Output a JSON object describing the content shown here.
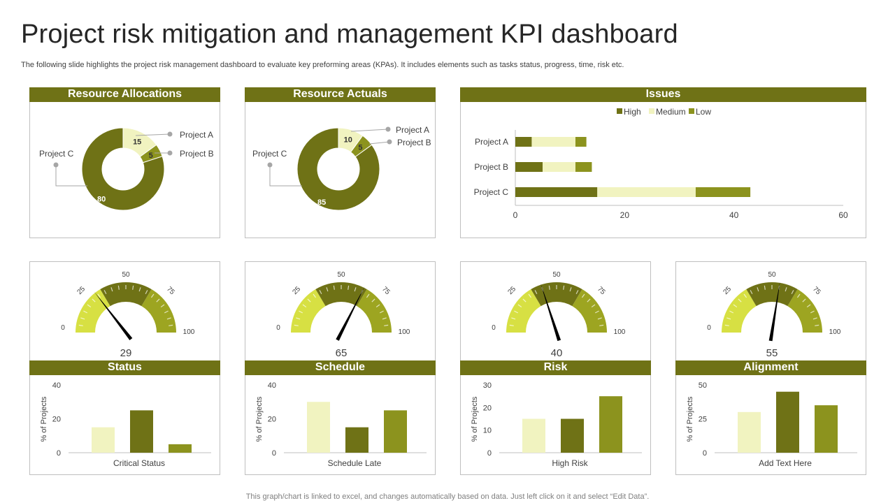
{
  "header": {
    "title": "Project risk mitigation and management KPI dashboard",
    "subtitle": "The following slide highlights the project risk management dashboard to evaluate key preforming areas (KPAs). It includes elements such as tasks status, progress, time, risk etc."
  },
  "footer": "This graph/chart is linked to excel,  and changes automatically based on data. Just left click on it and select “Edit Data”.",
  "colors": {
    "dark": "#6f7216",
    "mid": "#8c931e",
    "light": "#f1f3c0",
    "lime": "#d7e043",
    "olive2": "#9da521"
  },
  "chart_data": [
    {
      "id": "resource-allocations",
      "type": "pie",
      "title": "Resource Allocations",
      "categories": [
        "Project A",
        "Project B",
        "Project C"
      ],
      "values": [
        15,
        5,
        80
      ]
    },
    {
      "id": "resource-actuals",
      "type": "pie",
      "title": "Resource Actuals",
      "categories": [
        "Project A",
        "Project B",
        "Project C"
      ],
      "values": [
        10,
        5,
        85
      ]
    },
    {
      "id": "issues",
      "type": "bar",
      "orientation": "horizontal",
      "stacked": true,
      "title": "Issues",
      "categories": [
        "Project A",
        "Project B",
        "Project C"
      ],
      "series": [
        {
          "name": "High",
          "values": [
            3,
            5,
            15
          ]
        },
        {
          "name": "Medium",
          "values": [
            8,
            6,
            18
          ]
        },
        {
          "name": "Low",
          "values": [
            2,
            3,
            10
          ]
        }
      ],
      "xlim": [
        0,
        60
      ],
      "xticks": [
        "0",
        "20",
        "40",
        "60"
      ],
      "legend": "top"
    },
    {
      "id": "status-gauge",
      "type": "gauge",
      "title": "Status",
      "value": 29,
      "value_label": "29",
      "range": [
        0,
        100
      ],
      "tick_labels": [
        "0",
        "25",
        "50",
        "75",
        "100"
      ]
    },
    {
      "id": "schedule-gauge",
      "type": "gauge",
      "title": "Schedule",
      "value": 65,
      "value_label": "65",
      "range": [
        0,
        100
      ],
      "tick_labels": [
        "0",
        "25",
        "50",
        "75",
        "100"
      ]
    },
    {
      "id": "risk-gauge",
      "type": "gauge",
      "title": "Risk",
      "value": 40,
      "value_label": "40",
      "range": [
        0,
        100
      ],
      "tick_labels": [
        "0",
        "25",
        "50",
        "75",
        "100"
      ]
    },
    {
      "id": "alignment-gauge",
      "type": "gauge",
      "title": "Alignment",
      "value": 55,
      "value_label": "55",
      "range": [
        0,
        100
      ],
      "tick_labels": [
        "0",
        "25",
        "50",
        "75",
        "100"
      ]
    },
    {
      "id": "status-bars",
      "type": "bar",
      "xlabel": "Critical Status",
      "ylabel": "% of Projects",
      "values": [
        15,
        25,
        5
      ],
      "ylim": [
        0,
        40
      ],
      "yticks": [
        "0",
        "20",
        "40"
      ]
    },
    {
      "id": "schedule-bars",
      "type": "bar",
      "xlabel": "Schedule Late",
      "ylabel": "% of Projects",
      "values": [
        30,
        15,
        25
      ],
      "ylim": [
        0,
        40
      ],
      "yticks": [
        "0",
        "20",
        "40"
      ]
    },
    {
      "id": "risk-bars",
      "type": "bar",
      "xlabel": "High Risk",
      "ylabel": "% of Projects",
      "values": [
        15,
        15,
        25
      ],
      "ylim": [
        0,
        30
      ],
      "yticks": [
        "0",
        "10",
        "20",
        "30"
      ]
    },
    {
      "id": "alignment-bars",
      "type": "bar",
      "xlabel": "Add Text Here",
      "ylabel": "% of Projects",
      "values": [
        30,
        45,
        35
      ],
      "ylim": [
        0,
        50
      ],
      "yticks": [
        "0",
        "25",
        "50"
      ]
    }
  ]
}
